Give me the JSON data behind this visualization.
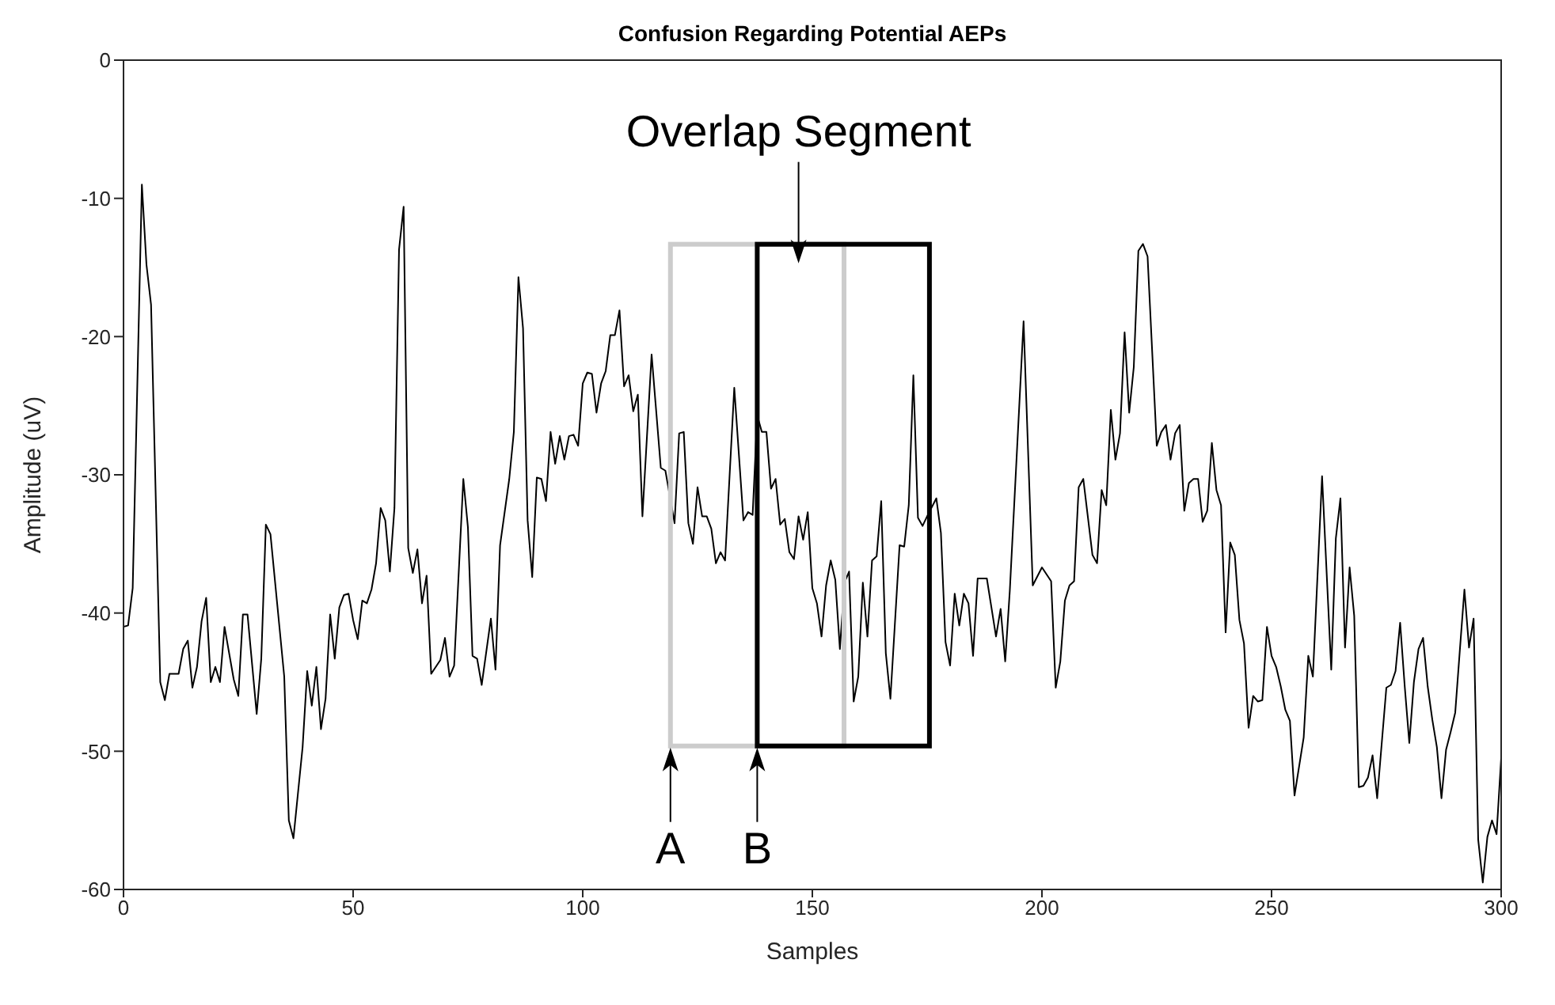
{
  "chart_data": {
    "type": "line",
    "title": "Confusion Regarding Potential AEPs",
    "xlabel": "Samples",
    "ylabel": "Amplitude (uV)",
    "xlim": [
      0,
      300
    ],
    "xticks": [
      0,
      50,
      100,
      150,
      200,
      250,
      300
    ],
    "ylim": [
      -60,
      0
    ],
    "yticks": [
      -60,
      -50,
      -40,
      -30,
      -20,
      -10,
      0
    ],
    "grid": false,
    "legend": false,
    "marker": "none",
    "line_style": "solid",
    "series": [
      {
        "color": "#000000",
        "x": [
          0,
          1,
          2,
          4,
          5,
          6,
          8,
          9,
          10,
          12,
          13,
          14,
          15,
          16,
          17,
          18,
          19,
          20,
          21,
          22,
          24,
          25,
          26,
          27,
          29,
          30,
          31,
          32,
          35,
          36,
          37,
          39,
          40,
          41,
          42,
          43,
          44,
          45,
          46,
          47,
          48,
          49,
          50,
          51,
          52,
          53,
          54,
          55,
          56,
          57,
          58,
          59,
          60,
          61,
          62,
          63,
          64,
          65,
          66,
          67,
          69,
          70,
          71,
          72,
          74,
          75,
          76,
          77,
          78,
          80,
          81,
          82,
          84,
          85,
          86,
          87,
          88,
          89,
          90,
          91,
          92,
          93,
          94,
          95,
          96,
          97,
          98,
          99,
          100,
          101,
          102,
          103,
          104,
          105,
          106,
          107,
          108,
          109,
          110,
          111,
          112,
          113,
          115,
          117,
          118,
          120,
          121,
          122,
          123,
          124,
          125,
          126,
          127,
          128,
          129,
          130,
          131,
          133,
          135,
          136,
          137,
          138,
          139,
          140,
          141,
          142,
          143,
          144,
          145,
          146,
          147,
          148,
          149,
          150,
          151,
          152,
          153,
          154,
          155,
          156,
          157,
          158,
          159,
          160,
          161,
          162,
          163,
          164,
          165,
          166,
          167,
          169,
          170,
          171,
          172,
          173,
          174,
          175,
          177,
          178,
          179,
          180,
          181,
          182,
          183,
          184,
          185,
          186,
          188,
          190,
          191,
          192,
          193,
          196,
          198,
          200,
          202,
          203,
          204,
          205,
          206,
          207,
          208,
          209,
          211,
          212,
          213,
          214,
          215,
          216,
          217,
          218,
          219,
          220,
          221,
          222,
          223,
          225,
          226,
          227,
          228,
          229,
          230,
          231,
          232,
          233,
          234,
          235,
          236,
          237,
          238,
          239,
          240,
          241,
          242,
          243,
          244,
          245,
          246,
          247,
          248,
          249,
          250,
          251,
          252,
          253,
          254,
          255,
          257,
          258,
          259,
          261,
          263,
          264,
          265,
          266,
          267,
          268,
          269,
          270,
          271,
          272,
          273,
          275,
          276,
          277,
          278,
          279,
          280,
          281,
          282,
          283,
          284,
          285,
          286,
          287,
          288,
          289,
          290,
          291,
          292,
          293,
          294,
          295,
          296,
          297,
          298,
          299,
          300
        ],
        "values": [
          -41,
          -40.9,
          -38.2,
          -9.0,
          -14.8,
          -17.7,
          -45,
          -46.3,
          -44.4,
          -44.4,
          -42.6,
          -42,
          -45.4,
          -43.9,
          -40.6,
          -38.9,
          -45,
          -43.9,
          -45,
          -41,
          -44.8,
          -46,
          -40.1,
          -40.1,
          -47.3,
          -43.3,
          -33.6,
          -34.3,
          -44.6,
          -55,
          -56.3,
          -49.7,
          -44.2,
          -46.7,
          -43.9,
          -48.4,
          -46.2,
          -40.1,
          -43.3,
          -39.6,
          -38.7,
          -38.6,
          -40.5,
          -41.9,
          -39.1,
          -39.3,
          -38.3,
          -36.4,
          -32.4,
          -33.3,
          -37,
          -32.4,
          -13.7,
          -10.6,
          -35.3,
          -37.1,
          -35.4,
          -39.3,
          -37.3,
          -44.4,
          -43.4,
          -41.8,
          -44.6,
          -43.8,
          -30.3,
          -33.8,
          -43.1,
          -43.3,
          -45.2,
          -40.4,
          -44.1,
          -35.1,
          -30.3,
          -26.9,
          -15.7,
          -19.4,
          -33.3,
          -37.4,
          -30.2,
          -30.3,
          -31.9,
          -26.9,
          -29.2,
          -27.2,
          -28.9,
          -27.2,
          -27.1,
          -27.9,
          -23.4,
          -22.6,
          -22.7,
          -25.5,
          -23.4,
          -22.5,
          -19.9,
          -19.9,
          -18.1,
          -23.6,
          -22.8,
          -25.4,
          -24.2,
          -33,
          -21.3,
          -29.5,
          -29.7,
          -33.5,
          -27,
          -26.9,
          -33.5,
          -35,
          -30.9,
          -33,
          -33,
          -33.9,
          -36.4,
          -35.6,
          -36.2,
          -23.7,
          -33.3,
          -32.7,
          -32.9,
          -25.7,
          -26.9,
          -26.9,
          -31,
          -30.3,
          -33.6,
          -33.2,
          -35.6,
          -36.1,
          -33,
          -34.7,
          -32.7,
          -38.2,
          -39.3,
          -41.7,
          -38,
          -36.2,
          -37.6,
          -42.6,
          -37.8,
          -37,
          -46.4,
          -44.6,
          -37.8,
          -41.7,
          -36.2,
          -35.9,
          -31.9,
          -42.9,
          -46.2,
          -35.1,
          -35.2,
          -32.2,
          -22.8,
          -33.1,
          -33.7,
          -33,
          -31.7,
          -34.2,
          -42.1,
          -43.8,
          -38.6,
          -40.9,
          -38.6,
          -39.3,
          -43.1,
          -37.5,
          -37.5,
          -41.7,
          -39.7,
          -43.5,
          -38.4,
          -18.9,
          -38,
          -36.7,
          -37.7,
          -45.4,
          -43.5,
          -39.1,
          -38,
          -37.7,
          -30.9,
          -30.3,
          -35.8,
          -36.4,
          -31.1,
          -32.2,
          -25.3,
          -28.9,
          -27,
          -19.7,
          -25.5,
          -22.2,
          -13.8,
          -13.3,
          -14.2,
          -27.9,
          -26.9,
          -26.4,
          -28.9,
          -27,
          -26.4,
          -32.6,
          -30.6,
          -30.3,
          -30.3,
          -33.4,
          -32.6,
          -27.7,
          -31.1,
          -32.2,
          -41.4,
          -34.9,
          -35.8,
          -40.5,
          -42.2,
          -48.3,
          -46,
          -46.4,
          -46.3,
          -41,
          -43.1,
          -43.9,
          -45.3,
          -47,
          -47.8,
          -53.2,
          -49,
          -43.1,
          -44.6,
          -30.1,
          -44.1,
          -34.6,
          -31.7,
          -42.5,
          -36.7,
          -40.2,
          -52.6,
          -52.5,
          -51.9,
          -50.3,
          -53.4,
          -45.4,
          -45.2,
          -44.2,
          -40.7,
          -45.3,
          -49.4,
          -45,
          -42.6,
          -41.8,
          -45.3,
          -47.7,
          -49.7,
          -53.4,
          -49.9,
          -48.6,
          -47.2,
          -42.7,
          -38.3,
          -42.5,
          -40.4,
          -56.4,
          -59.5,
          -56.2,
          -55,
          -56,
          -50.5
        ]
      }
    ],
    "annotations": [
      "Overlap Segment",
      "A",
      "B"
    ]
  }
}
